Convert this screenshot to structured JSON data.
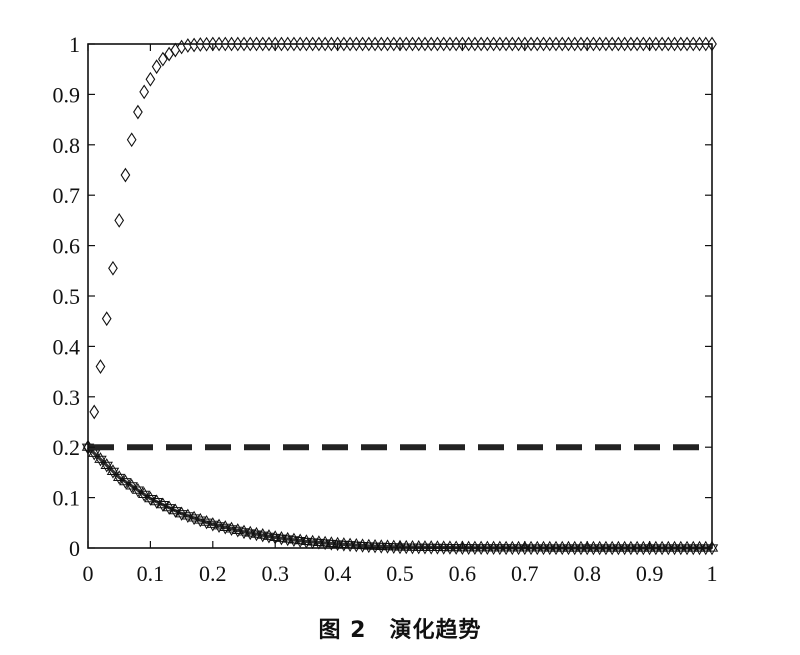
{
  "caption": "图 2　演化趋势",
  "chart_data": {
    "type": "line",
    "title": "",
    "xlabel": "",
    "ylabel": "",
    "xlim": [
      0,
      1
    ],
    "ylim": [
      0,
      1
    ],
    "xticks": [
      "0",
      "0.1",
      "0.2",
      "0.3",
      "0.4",
      "0.5",
      "0.6",
      "0.7",
      "0.8",
      "0.9",
      "1"
    ],
    "yticks": [
      "0",
      "0.1",
      "0.2",
      "0.3",
      "0.4",
      "0.5",
      "0.6",
      "0.7",
      "0.8",
      "0.9",
      "1"
    ],
    "grid": false,
    "series": [
      {
        "marker": "diamond",
        "style": "markers",
        "x": [
          0,
          0.01,
          0.02,
          0.03,
          0.04,
          0.05,
          0.06,
          0.07,
          0.08,
          0.09,
          0.1,
          0.11,
          0.12,
          0.13,
          0.14,
          0.15,
          0.16,
          0.18,
          0.2,
          0.25,
          0.3,
          0.4,
          0.5,
          0.6,
          0.7,
          0.8,
          0.9,
          1.0
        ],
        "y": [
          0.2,
          0.27,
          0.36,
          0.455,
          0.555,
          0.65,
          0.74,
          0.81,
          0.865,
          0.905,
          0.93,
          0.955,
          0.97,
          0.98,
          0.988,
          0.994,
          0.997,
          0.999,
          1.0,
          1.0,
          1.0,
          1.0,
          1.0,
          1.0,
          1.0,
          1.0,
          1.0,
          1.0
        ]
      },
      {
        "marker": "hexagram",
        "style": "markers+line",
        "x": [
          0,
          0.05,
          0.1,
          0.15,
          0.2,
          0.25,
          0.3,
          0.35,
          0.4,
          0.45,
          0.5,
          0.6,
          0.7,
          0.8,
          0.9,
          1.0
        ],
        "y": [
          0.2,
          0.14,
          0.098,
          0.068,
          0.047,
          0.032,
          0.021,
          0.013,
          0.008,
          0.004,
          0.002,
          0.0005,
          0.0001,
          0.0,
          0.0,
          0.0
        ]
      },
      {
        "marker": "none",
        "style": "dashed",
        "x": [
          0,
          1
        ],
        "y": [
          0.2,
          0.2
        ]
      }
    ]
  }
}
